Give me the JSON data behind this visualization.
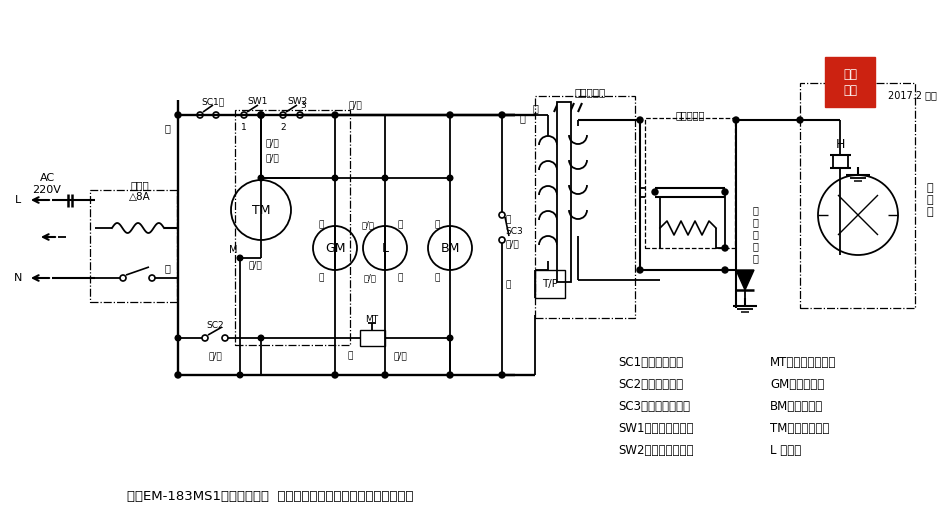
{
  "title": "三洋EM-183MS1微波炉电路图  （此电路表示的是开门、非通电状态）",
  "legend": [
    [
      "SC1：门联锁开关",
      "MT：磁控管限温器"
    ],
    [
      "SC2：门感应开关",
      "GM：转盘电机"
    ],
    [
      "SC3：联锁监控开关",
      "BM：风扇电机"
    ],
    [
      "SW1：定时器主开关",
      "TM：定时器电机"
    ],
    [
      "SW2：功率分配开关",
      "L ：炉灯"
    ]
  ],
  "bg_color": "#ffffff",
  "stamp_color": "#cc2211",
  "line_color": "#000000"
}
